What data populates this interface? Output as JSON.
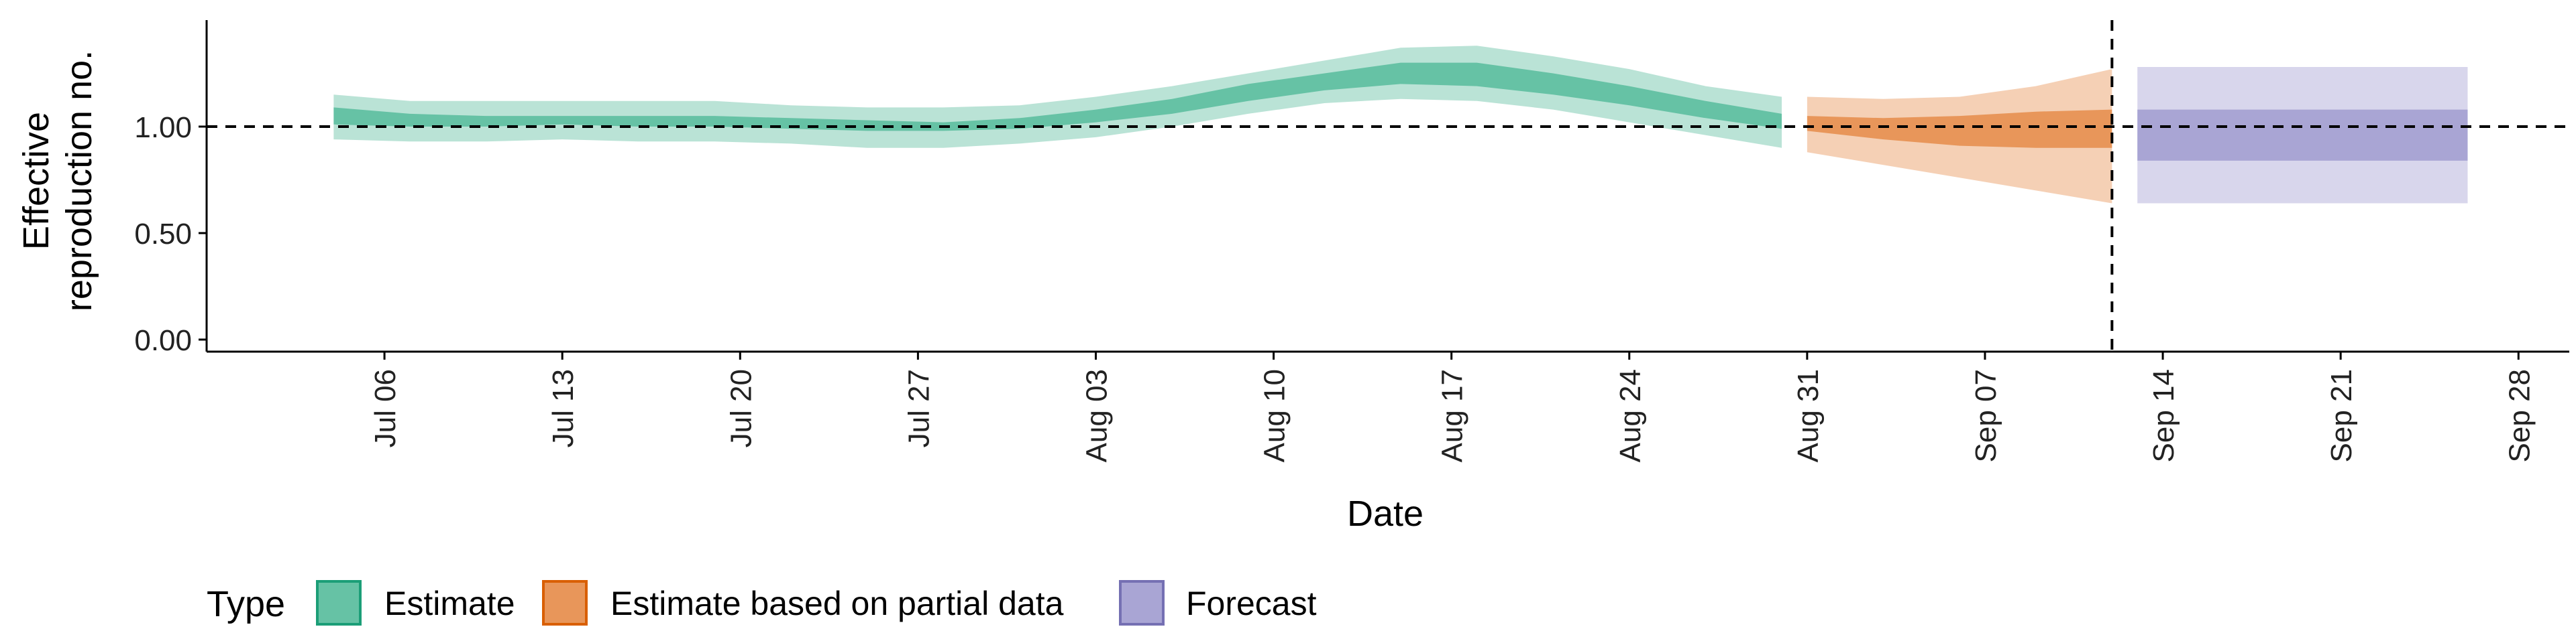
{
  "chart_data": {
    "type": "area",
    "xlabel": "Date",
    "ylabel_lines": [
      "Effective",
      "reproduction no."
    ],
    "ylim": [
      0,
      1.5
    ],
    "y_ticks": [
      0.0,
      0.5,
      1.0
    ],
    "y_tick_labels": [
      "0.00",
      "0.50",
      "1.00"
    ],
    "x_ticks": [
      "2020-07-06",
      "2020-07-13",
      "2020-07-20",
      "2020-07-27",
      "2020-08-03",
      "2020-08-10",
      "2020-08-17",
      "2020-08-24",
      "2020-08-31",
      "2020-09-07",
      "2020-09-14",
      "2020-09-21",
      "2020-09-28"
    ],
    "x_tick_labels": [
      "Jul 06",
      "Jul 13",
      "Jul 20",
      "Jul 27",
      "Aug 03",
      "Aug 10",
      "Aug 17",
      "Aug 24",
      "Aug 31",
      "Sep 07",
      "Sep 14",
      "Sep 21",
      "Sep 28"
    ],
    "xlim": [
      "2020-06-29",
      "2020-09-30"
    ],
    "reference_line_y": 1.0,
    "forecast_date": "2020-09-12",
    "grid": false,
    "legend": {
      "title": "Type",
      "placement": "bottom",
      "items": [
        {
          "label": "Estimate",
          "color": "#66c2a5",
          "border": "#1b9e77"
        },
        {
          "label": "Estimate based on partial data",
          "color": "#e8965a",
          "border": "#d95f02"
        },
        {
          "label": "Forecast",
          "color": "#a9a5d4",
          "border": "#7570b3"
        }
      ]
    },
    "series": [
      {
        "name": "Estimate",
        "color": "#66c2a5",
        "points": [
          {
            "date": "2020-07-04",
            "lower90": 0.94,
            "upper90": 1.15,
            "lower50": 1.01,
            "upper50": 1.09
          },
          {
            "date": "2020-07-07",
            "lower90": 0.93,
            "upper90": 1.12,
            "lower50": 1.0,
            "upper50": 1.06
          },
          {
            "date": "2020-07-10",
            "lower90": 0.93,
            "upper90": 1.12,
            "lower50": 1.0,
            "upper50": 1.05
          },
          {
            "date": "2020-07-13",
            "lower90": 0.94,
            "upper90": 1.12,
            "lower50": 1.01,
            "upper50": 1.05
          },
          {
            "date": "2020-07-16",
            "lower90": 0.93,
            "upper90": 1.12,
            "lower50": 1.0,
            "upper50": 1.05
          },
          {
            "date": "2020-07-19",
            "lower90": 0.93,
            "upper90": 1.12,
            "lower50": 1.0,
            "upper50": 1.05
          },
          {
            "date": "2020-07-22",
            "lower90": 0.92,
            "upper90": 1.1,
            "lower50": 0.99,
            "upper50": 1.04
          },
          {
            "date": "2020-07-25",
            "lower90": 0.9,
            "upper90": 1.09,
            "lower50": 0.98,
            "upper50": 1.03
          },
          {
            "date": "2020-07-28",
            "lower90": 0.9,
            "upper90": 1.09,
            "lower50": 0.98,
            "upper50": 1.02
          },
          {
            "date": "2020-07-31",
            "lower90": 0.92,
            "upper90": 1.1,
            "lower50": 0.99,
            "upper50": 1.04
          },
          {
            "date": "2020-08-03",
            "lower90": 0.95,
            "upper90": 1.14,
            "lower50": 1.02,
            "upper50": 1.08
          },
          {
            "date": "2020-08-06",
            "lower90": 1.0,
            "upper90": 1.19,
            "lower50": 1.06,
            "upper50": 1.13
          },
          {
            "date": "2020-08-09",
            "lower90": 1.06,
            "upper90": 1.25,
            "lower50": 1.12,
            "upper50": 1.2
          },
          {
            "date": "2020-08-12",
            "lower90": 1.11,
            "upper90": 1.31,
            "lower50": 1.17,
            "upper50": 1.25
          },
          {
            "date": "2020-08-15",
            "lower90": 1.13,
            "upper90": 1.37,
            "lower50": 1.2,
            "upper50": 1.3
          },
          {
            "date": "2020-08-18",
            "lower90": 1.12,
            "upper90": 1.38,
            "lower50": 1.19,
            "upper50": 1.3
          },
          {
            "date": "2020-08-21",
            "lower90": 1.08,
            "upper90": 1.33,
            "lower50": 1.15,
            "upper50": 1.25
          },
          {
            "date": "2020-08-24",
            "lower90": 1.02,
            "upper90": 1.27,
            "lower50": 1.1,
            "upper50": 1.19
          },
          {
            "date": "2020-08-27",
            "lower90": 0.96,
            "upper90": 1.19,
            "lower50": 1.04,
            "upper50": 1.12
          },
          {
            "date": "2020-08-30",
            "lower90": 0.9,
            "upper90": 1.14,
            "lower50": 0.99,
            "upper50": 1.06
          }
        ]
      },
      {
        "name": "Estimate based on partial data",
        "color": "#e8965a",
        "points": [
          {
            "date": "2020-08-31",
            "lower90": 0.88,
            "upper90": 1.14,
            "lower50": 0.98,
            "upper50": 1.05
          },
          {
            "date": "2020-09-03",
            "lower90": 0.82,
            "upper90": 1.13,
            "lower50": 0.94,
            "upper50": 1.04
          },
          {
            "date": "2020-09-06",
            "lower90": 0.76,
            "upper90": 1.14,
            "lower50": 0.91,
            "upper50": 1.05
          },
          {
            "date": "2020-09-09",
            "lower90": 0.7,
            "upper90": 1.19,
            "lower50": 0.9,
            "upper50": 1.07
          },
          {
            "date": "2020-09-12",
            "lower90": 0.64,
            "upper90": 1.27,
            "lower50": 0.9,
            "upper50": 1.08
          }
        ]
      },
      {
        "name": "Forecast",
        "color": "#a9a5d4",
        "points": [
          {
            "date": "2020-09-13",
            "lower90": 0.64,
            "upper90": 1.28,
            "lower50": 0.84,
            "upper50": 1.08
          },
          {
            "date": "2020-09-26",
            "lower90": 0.64,
            "upper90": 1.28,
            "lower50": 0.84,
            "upper50": 1.08
          }
        ]
      }
    ]
  }
}
